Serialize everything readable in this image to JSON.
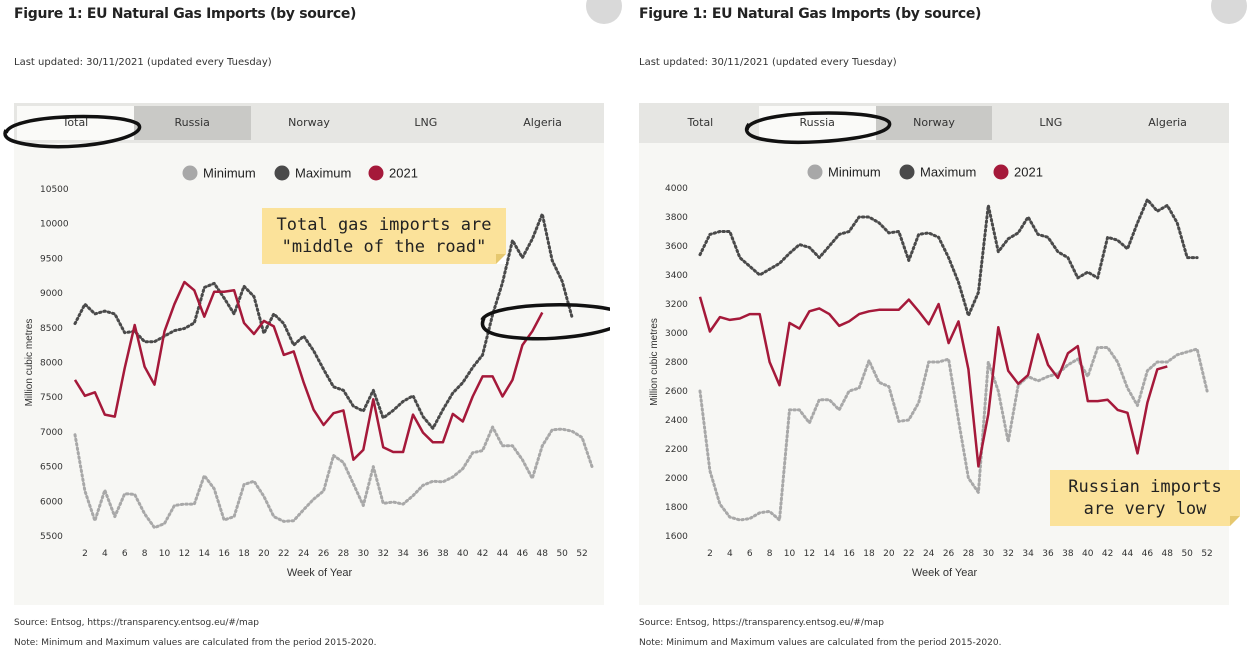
{
  "colors": {
    "minimum": "#a8a8a8",
    "maximum": "#4a4a4a",
    "current": "#a5193a",
    "note_bg": "#fbe29a"
  },
  "icons": [
    "share-icon"
  ],
  "panels": [
    {
      "title": "Figure 1: EU Natural Gas Imports (by source)",
      "updated": "Last updated: 30/11/2021 (updated every Tuesday)",
      "tabs": [
        "Total",
        "Russia",
        "Norway",
        "LNG",
        "Algeria"
      ],
      "active_tab": "Total",
      "source": "Source: Entsog,   https://transparency.entsog.eu/#/map",
      "footnote": "Note: Minimum and Maximum values are calculated from the period 2015-2020.",
      "annotation": [
        "Total gas imports are",
        "\"middle of the road\""
      ],
      "chart_data": {
        "type": "line",
        "xlabel": "Week of Year",
        "ylabel": "Million cubic metres",
        "ylim": [
          5500,
          10500
        ],
        "yticks": [
          5500,
          6000,
          6500,
          7000,
          7500,
          8000,
          8500,
          9000,
          9500,
          10000,
          10500
        ],
        "xticks": [
          2,
          4,
          6,
          8,
          10,
          12,
          14,
          16,
          18,
          20,
          22,
          24,
          26,
          28,
          30,
          32,
          34,
          36,
          38,
          40,
          42,
          44,
          46,
          48,
          50,
          52
        ],
        "legend": [
          "Minimum",
          "Maximum",
          "2021"
        ],
        "legend_position": "top-center",
        "series": [
          {
            "name": "Minimum",
            "style": "dotted",
            "x_start": 1,
            "values": [
              6960,
              6150,
              5720,
              6160,
              5780,
              6110,
              6100,
              5820,
              5620,
              5680,
              5940,
              5960,
              5960,
              6370,
              6180,
              5730,
              5780,
              6240,
              6290,
              6070,
              5780,
              5710,
              5720,
              5880,
              6030,
              6150,
              6660,
              6560,
              6250,
              5940,
              6500,
              5970,
              5990,
              5960,
              6080,
              6230,
              6290,
              6280,
              6350,
              6470,
              6700,
              6730,
              7070,
              6800,
              6800,
              6600,
              6330,
              6800,
              7030,
              7040,
              7010,
              6920,
              6500
            ]
          },
          {
            "name": "Maximum",
            "style": "dotted",
            "x_start": 1,
            "values": [
              8560,
              8840,
              8700,
              8740,
              8700,
              8430,
              8450,
              8300,
              8300,
              8380,
              8460,
              8490,
              8570,
              9080,
              9140,
              8930,
              8700,
              9100,
              8950,
              8420,
              8700,
              8560,
              8250,
              8380,
              8170,
              7900,
              7650,
              7600,
              7370,
              7300,
              7600,
              7200,
              7310,
              7440,
              7520,
              7220,
              7050,
              7320,
              7560,
              7710,
              7930,
              8110,
              8690,
              9150,
              9760,
              9510,
              9780,
              10140,
              9470,
              9170,
              8650
            ]
          },
          {
            "name": "2021",
            "style": "solid",
            "x_start": 1,
            "values": [
              7750,
              7520,
              7570,
              7250,
              7220,
              7920,
              8540,
              7940,
              7680,
              8450,
              8840,
              9160,
              9040,
              8660,
              9020,
              9020,
              9040,
              8570,
              8410,
              8600,
              8520,
              8110,
              8160,
              7710,
              7320,
              7100,
              7270,
              7310,
              6600,
              6740,
              7470,
              6780,
              6710,
              6710,
              7250,
              6990,
              6850,
              6850,
              7260,
              7150,
              7510,
              7800,
              7800,
              7510,
              7750,
              8250,
              8450,
              8720
            ]
          }
        ]
      }
    },
    {
      "title": "Figure 1: EU Natural Gas Imports (by source)",
      "updated": "Last updated: 30/11/2021 (updated every Tuesday)",
      "tabs": [
        "Total",
        "Russia",
        "Norway",
        "LNG",
        "Algeria"
      ],
      "active_tab": "Russia",
      "source": "Source: Entsog,   https://transparency.entsog.eu/#/map",
      "footnote": "Note: Minimum and Maximum values are calculated from the period 2015-2020.",
      "annotation": [
        "Russian imports",
        "are very low"
      ],
      "chart_data": {
        "type": "line",
        "xlabel": "Week of Year",
        "ylabel": "Million cubic metres",
        "ylim": [
          1600,
          4000
        ],
        "yticks": [
          1600,
          1800,
          2000,
          2200,
          2400,
          2600,
          2800,
          3000,
          3200,
          3400,
          3600,
          3800,
          4000
        ],
        "xticks": [
          2,
          4,
          6,
          8,
          10,
          12,
          14,
          16,
          18,
          20,
          22,
          24,
          26,
          28,
          30,
          32,
          34,
          36,
          38,
          40,
          42,
          44,
          46,
          48,
          50,
          52
        ],
        "legend": [
          "Minimum",
          "Maximum",
          "2021"
        ],
        "legend_position": "top-center",
        "series": [
          {
            "name": "Minimum",
            "style": "dotted",
            "x_start": 1,
            "values": [
              2600,
              2050,
              1820,
              1730,
              1710,
              1720,
              1760,
              1770,
              1710,
              2470,
              2470,
              2380,
              2540,
              2540,
              2470,
              2600,
              2620,
              2810,
              2660,
              2630,
              2390,
              2400,
              2520,
              2800,
              2800,
              2820,
              2400,
              2000,
              1900,
              2800,
              2600,
              2250,
              2640,
              2700,
              2670,
              2700,
              2720,
              2780,
              2820,
              2700,
              2900,
              2900,
              2800,
              2620,
              2500,
              2740,
              2800,
              2800,
              2850,
              2870,
              2890,
              2600
            ]
          },
          {
            "name": "Maximum",
            "style": "dotted",
            "x_start": 1,
            "values": [
              3540,
              3680,
              3700,
              3700,
              3520,
              3460,
              3400,
              3440,
              3480,
              3550,
              3610,
              3590,
              3520,
              3600,
              3680,
              3700,
              3800,
              3800,
              3760,
              3690,
              3700,
              3500,
              3680,
              3690,
              3660,
              3520,
              3350,
              3120,
              3280,
              3880,
              3560,
              3650,
              3690,
              3800,
              3680,
              3660,
              3560,
              3520,
              3380,
              3420,
              3380,
              3660,
              3640,
              3580,
              3760,
              3920,
              3840,
              3880,
              3760,
              3520,
              3520
            ]
          },
          {
            "name": "2021",
            "style": "solid",
            "x_start": 1,
            "values": [
              3250,
              3010,
              3110,
              3090,
              3100,
              3130,
              3130,
              2800,
              2640,
              3070,
              3030,
              3150,
              3170,
              3130,
              3050,
              3080,
              3130,
              3150,
              3160,
              3160,
              3160,
              3230,
              3150,
              3060,
              3200,
              2930,
              3080,
              2750,
              2080,
              2440,
              3040,
              2740,
              2650,
              2710,
              2990,
              2780,
              2690,
              2860,
              2910,
              2530,
              2530,
              2540,
              2470,
              2450,
              2170,
              2520,
              2750,
              2770
            ]
          }
        ]
      }
    }
  ]
}
